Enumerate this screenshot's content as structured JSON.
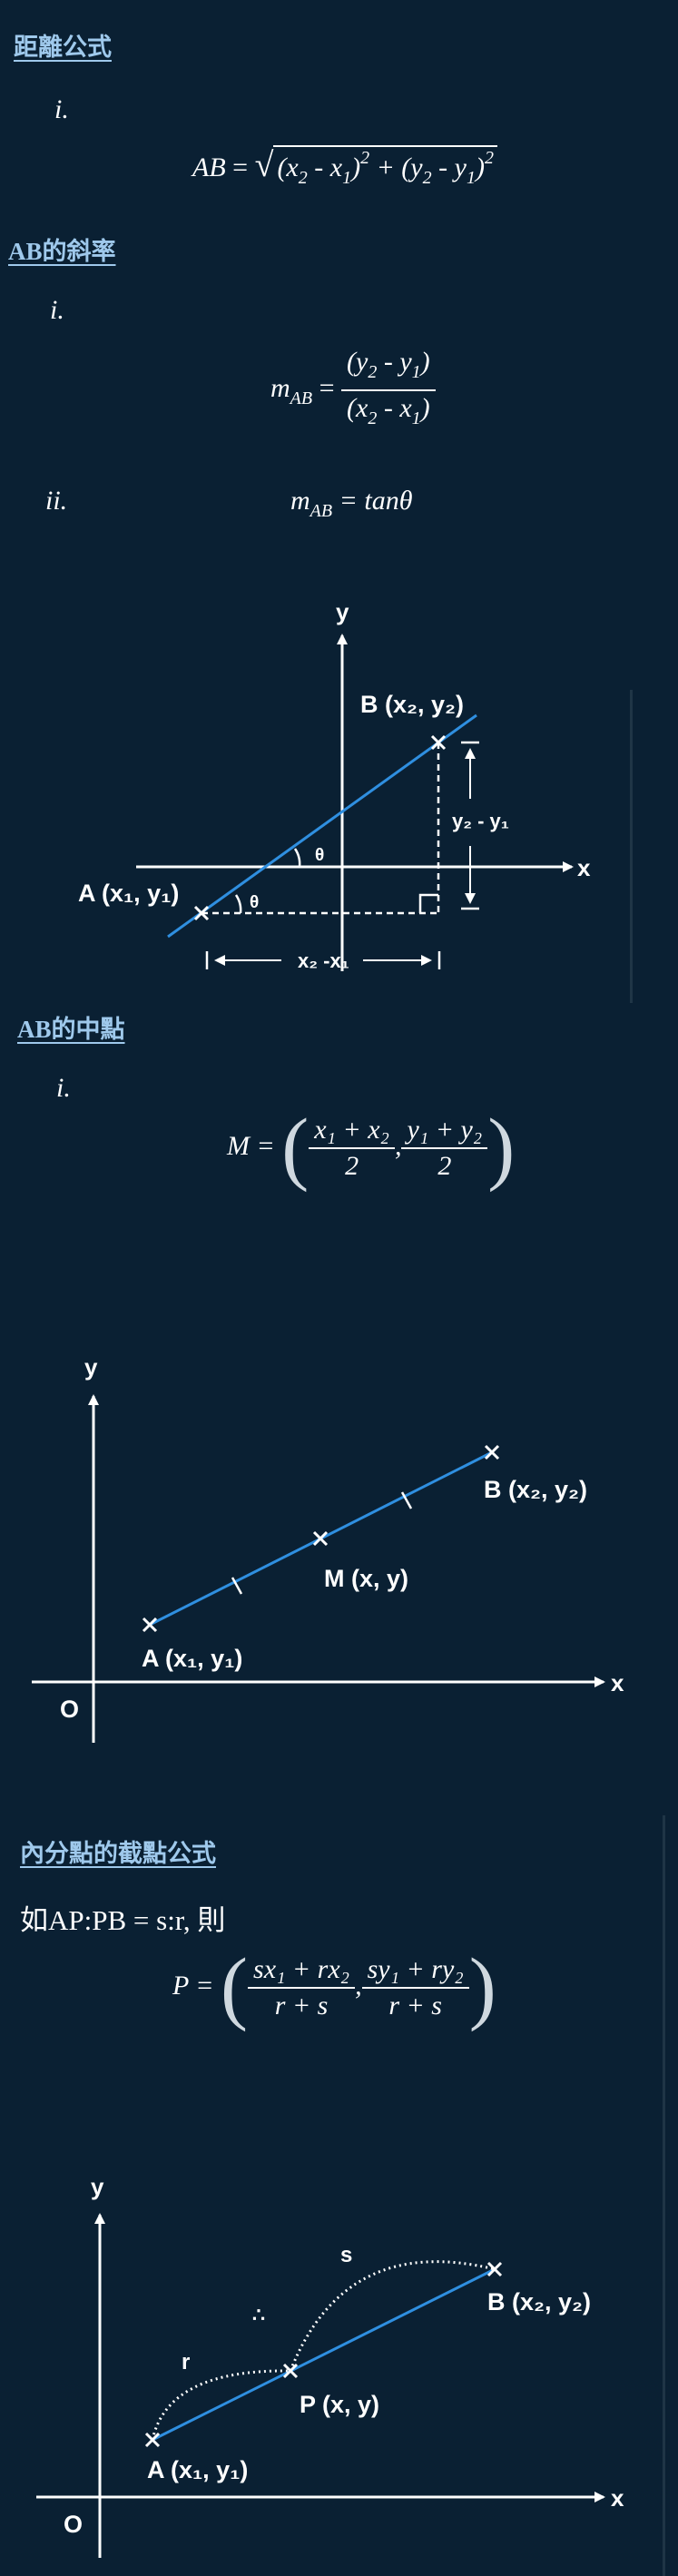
{
  "section_distance": {
    "title": "距離公式",
    "item_i": "i.",
    "formula_lhs": "AB",
    "formula_eq": "=",
    "formula_radical": "√"
  },
  "section_slope": {
    "title": "AB的斜率",
    "item_i": "i.",
    "item_ii": "ii.",
    "formula1_lhs": "m",
    "formula1_sub": "AB",
    "formula1_eq": "=",
    "formula2_rhs": "= tanθ"
  },
  "slope_diagram": {
    "axis_y": "y",
    "axis_x": "x",
    "point_b": "B (x₂, y₂)",
    "point_a": "A (x₁, y₁)",
    "angle1": "θ",
    "angle2": "θ",
    "dy_label": "y₂ - y₁",
    "dx_label": "x₂ -x₁"
  },
  "section_midpoint": {
    "title": "AB的中點",
    "item_i": "i.",
    "formula_lhs": "M =",
    "frac1_top": "x₁ + x₂",
    "frac1_bot": "2",
    "frac2_top": "y₁ + y₂",
    "frac2_bot": "2",
    "comma": ","
  },
  "midpoint_diagram": {
    "axis_y": "y",
    "axis_x": "x",
    "origin": "O",
    "point_b": "B (x₂, y₂)",
    "point_m": "M (x, y)",
    "point_a": "A (x₁, y₁)"
  },
  "section_division": {
    "title": "內分點的截點公式",
    "condition": "如AP:PB = s:r, 則",
    "formula_lhs": "P =",
    "frac1_top": "sx₁ + rx₂",
    "frac1_bot": "r + s",
    "frac2_top": "sy₁ + ry₂",
    "frac2_bot": "r + s",
    "comma": ","
  },
  "division_diagram": {
    "axis_y": "y",
    "axis_x": "x",
    "origin": "O",
    "point_b": "B (x₂, y₂)",
    "point_p": "P (x, y)",
    "point_a": "A (x₁, y₁)",
    "label_r": "r",
    "label_s": "s",
    "therefore": "∴"
  },
  "colors": {
    "background": "#0a2033",
    "heading": "#9fc9ec",
    "line_blue": "#2f8fe0"
  }
}
